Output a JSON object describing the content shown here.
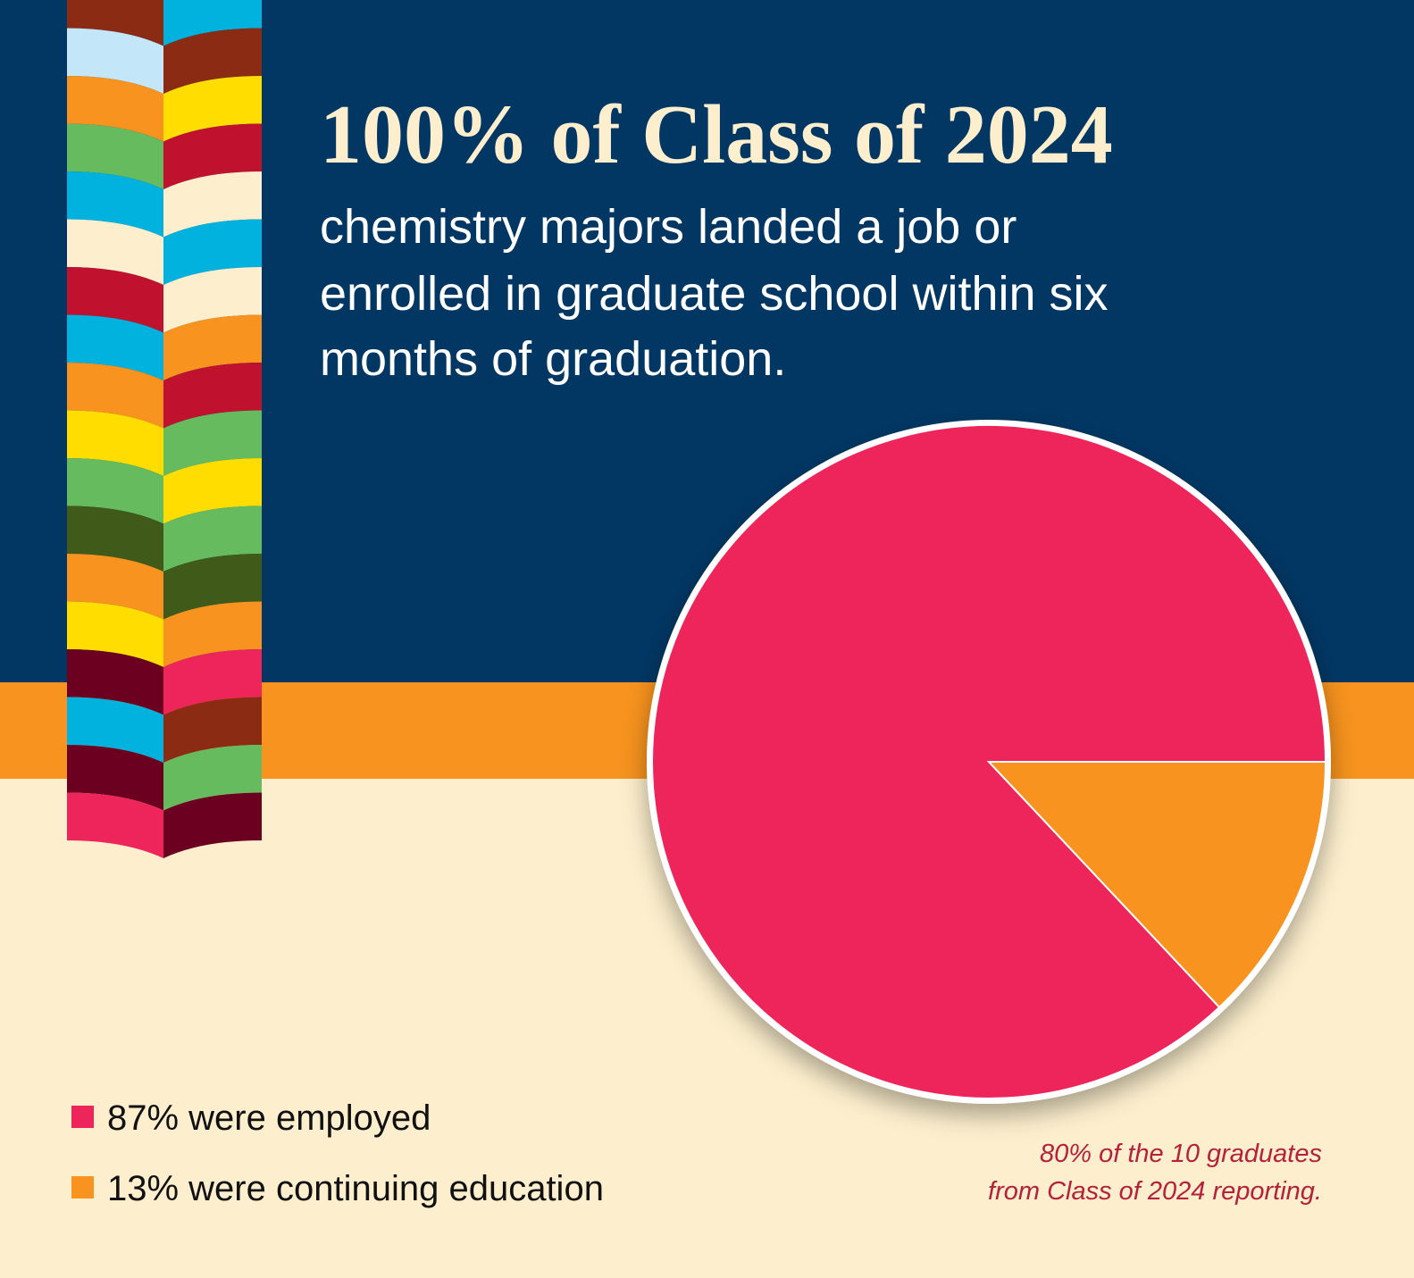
{
  "chart_data": {
    "type": "pie",
    "title": "100% of Class of 2024",
    "subtitle": [
      "chemistry majors landed a job or",
      "enrolled in graduate school within six",
      "months of graduation."
    ],
    "categories": [
      "87% were employed",
      "13% were continuing education"
    ],
    "values": [
      87,
      13
    ],
    "colors": [
      "#ee255b",
      "#f7931e"
    ],
    "startangle": 0,
    "counterclock": true,
    "note": [
      "80% of the 10 graduates",
      "from Class of 2024 reporting."
    ]
  }
}
